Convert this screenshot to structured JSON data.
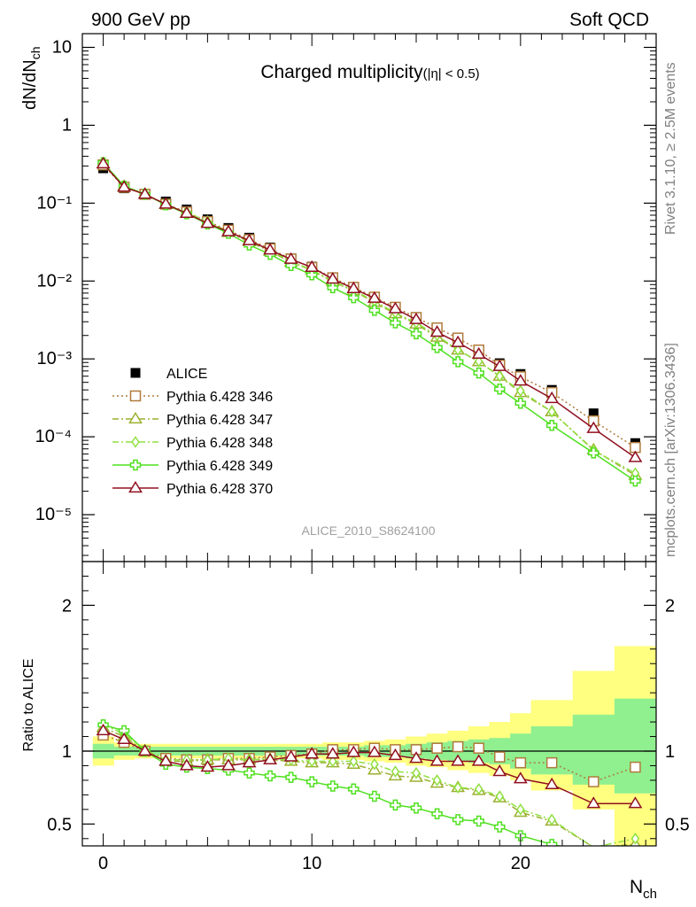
{
  "header": {
    "left": "900 GeV pp",
    "right": "Soft QCD"
  },
  "side_notes": {
    "top": "Rivet 3.1.10, ≥ 2.5M events",
    "bottom": "mcplots.cern.ch [arXiv:1306.3436]"
  },
  "analysis_id": "ALICE_2010_S8624100",
  "chart_data": [
    {
      "type": "line",
      "panel": "main",
      "title": "Charged multiplicity",
      "title_suffix": "(|η| < 0.5)",
      "ylabel": "dN/dN_ch",
      "xlabel": "",
      "yscale": "log",
      "xlim": [
        -1,
        26.5
      ],
      "ylim": [
        2.5e-06,
        15
      ],
      "yticks": [
        {
          "value": 10,
          "label": "10"
        },
        {
          "value": 1,
          "label": "1"
        },
        {
          "value": 0.1,
          "label": "10⁻¹"
        },
        {
          "value": 0.01,
          "label": "10⁻²"
        },
        {
          "value": 0.001,
          "label": "10⁻³"
        },
        {
          "value": 0.0001,
          "label": "10⁻⁴"
        },
        {
          "value": 1e-05,
          "label": "10⁻⁵"
        }
      ],
      "legend_position": "lower-left",
      "grid": false,
      "series": [
        {
          "name": "ALICE",
          "marker": "square-filled",
          "color": "#000000",
          "line": "none",
          "x": [
            0,
            1,
            2,
            3,
            4,
            5,
            6,
            7,
            8,
            9,
            10,
            11,
            12,
            13,
            14,
            15,
            16,
            17,
            18,
            19,
            20,
            21.5,
            23.5,
            25.5
          ],
          "y": [
            0.28,
            0.155,
            0.13,
            0.105,
            0.083,
            0.062,
            0.048,
            0.036,
            0.027,
            0.0195,
            0.0153,
            0.0108,
            0.0082,
            0.0061,
            0.0046,
            0.0034,
            0.0024,
            0.00175,
            0.00125,
            0.00088,
            0.00064,
            0.0004,
            0.0002,
            8.3e-05
          ]
        },
        {
          "name": "Pythia 6.428 346",
          "marker": "square-open",
          "color": "#b07a3a",
          "line": "dotted",
          "x": [
            0,
            1,
            2,
            3,
            4,
            5,
            6,
            7,
            8,
            9,
            10,
            11,
            12,
            13,
            14,
            15,
            16,
            17,
            18,
            19,
            20,
            21.5,
            23.5,
            25.5
          ],
          "y": [
            0.31,
            0.16,
            0.13,
            0.097,
            0.077,
            0.058,
            0.045,
            0.034,
            0.026,
            0.0192,
            0.0149,
            0.011,
            0.0083,
            0.0062,
            0.0046,
            0.0034,
            0.0025,
            0.00185,
            0.0013,
            0.00083,
            0.00059,
            0.00037,
            0.00016,
            7.3e-05
          ]
        },
        {
          "name": "Pythia 6.428 347",
          "marker": "triangle-open",
          "color": "#9cb030",
          "line": "dashdot",
          "x": [
            0,
            1,
            2,
            3,
            4,
            5,
            6,
            7,
            8,
            9,
            10,
            11,
            12,
            13,
            14,
            15,
            16,
            17,
            18,
            19,
            20,
            21.5,
            23.5,
            25.5
          ],
          "y": [
            0.32,
            0.165,
            0.13,
            0.096,
            0.075,
            0.057,
            0.042,
            0.032,
            0.024,
            0.0175,
            0.0138,
            0.0098,
            0.0075,
            0.0053,
            0.0038,
            0.0028,
            0.0019,
            0.0013,
            0.00092,
            0.0006,
            0.00037,
            0.00021,
            6.8e-05,
            3.2e-05
          ]
        },
        {
          "name": "Pythia 6.428 348",
          "marker": "diamond-open",
          "color": "#90e040",
          "line": "dashdot",
          "x": [
            0,
            1,
            2,
            3,
            4,
            5,
            6,
            7,
            8,
            9,
            10,
            11,
            12,
            13,
            14,
            15,
            16,
            17,
            18,
            19,
            20,
            21.5,
            23.5,
            25.5
          ],
          "y": [
            0.33,
            0.167,
            0.131,
            0.097,
            0.076,
            0.058,
            0.043,
            0.033,
            0.025,
            0.0178,
            0.0139,
            0.01,
            0.0076,
            0.0055,
            0.0039,
            0.0029,
            0.002,
            0.0013,
            0.00093,
            0.0006,
            0.00039,
            0.00021,
            6.7e-05,
            3.4e-05
          ]
        },
        {
          "name": "Pythia 6.428 349",
          "marker": "cross-open",
          "color": "#50e020",
          "line": "solid",
          "x": [
            0,
            1,
            2,
            3,
            4,
            5,
            6,
            7,
            8,
            9,
            10,
            11,
            12,
            13,
            14,
            15,
            16,
            17,
            18,
            19,
            20,
            21.5,
            23.5,
            25.5
          ],
          "y": [
            0.33,
            0.165,
            0.13,
            0.095,
            0.073,
            0.054,
            0.041,
            0.029,
            0.022,
            0.0158,
            0.012,
            0.0082,
            0.0061,
            0.0042,
            0.0029,
            0.0021,
            0.0014,
            0.00092,
            0.00066,
            0.00041,
            0.00027,
            0.00014,
            6.2e-05,
            2.7e-05
          ]
        },
        {
          "name": "Pythia 6.428 370",
          "marker": "triangle-open",
          "color": "#901020",
          "line": "solid",
          "x": [
            0,
            1,
            2,
            3,
            4,
            5,
            6,
            7,
            8,
            9,
            10,
            11,
            12,
            13,
            14,
            15,
            16,
            17,
            18,
            19,
            20,
            21.5,
            23.5,
            25.5
          ],
          "y": [
            0.32,
            0.16,
            0.13,
            0.097,
            0.074,
            0.055,
            0.043,
            0.033,
            0.025,
            0.019,
            0.015,
            0.0106,
            0.008,
            0.006,
            0.0044,
            0.0032,
            0.0022,
            0.00162,
            0.00115,
            0.0008,
            0.00052,
            0.00031,
            0.000128,
            5.4e-05
          ]
        }
      ]
    },
    {
      "type": "line",
      "panel": "ratio",
      "ylabel": "Ratio to ALICE",
      "xlabel": "N_ch",
      "xlim": [
        -1,
        26.5
      ],
      "ylim": [
        0.35,
        2.3
      ],
      "yticks": [
        0.5,
        1,
        2
      ],
      "xticks": [
        0,
        10,
        20
      ],
      "reference_line": 1,
      "bands": {
        "edges": [
          -0.5,
          0.5,
          1.5,
          2.5,
          3.5,
          4.5,
          5.5,
          6.5,
          7.5,
          8.5,
          9.5,
          10.5,
          11.5,
          12.5,
          13.5,
          14.5,
          15.5,
          16.5,
          17.5,
          18.5,
          19.5,
          20.5,
          22.5,
          24.5,
          26.5
        ],
        "outer": {
          "color": "#ffff80",
          "lo": [
            0.9,
            0.94,
            0.95,
            0.95,
            0.95,
            0.95,
            0.95,
            0.95,
            0.95,
            0.95,
            0.95,
            0.94,
            0.94,
            0.93,
            0.92,
            0.9,
            0.89,
            0.87,
            0.85,
            0.83,
            0.8,
            0.73,
            0.6,
            0.33
          ],
          "hi": [
            1.1,
            1.06,
            1.05,
            1.05,
            1.05,
            1.05,
            1.05,
            1.05,
            1.05,
            1.05,
            1.05,
            1.06,
            1.06,
            1.07,
            1.08,
            1.1,
            1.12,
            1.14,
            1.17,
            1.2,
            1.26,
            1.35,
            1.55,
            1.72
          ]
        },
        "inner": {
          "color": "#90f090",
          "lo": [
            0.95,
            0.97,
            0.97,
            0.97,
            0.97,
            0.97,
            0.97,
            0.97,
            0.97,
            0.97,
            0.97,
            0.97,
            0.97,
            0.96,
            0.96,
            0.95,
            0.94,
            0.93,
            0.92,
            0.91,
            0.88,
            0.84,
            0.77,
            0.71
          ],
          "hi": [
            1.05,
            1.03,
            1.03,
            1.03,
            1.03,
            1.03,
            1.03,
            1.03,
            1.03,
            1.03,
            1.03,
            1.03,
            1.03,
            1.04,
            1.04,
            1.05,
            1.06,
            1.07,
            1.08,
            1.09,
            1.12,
            1.17,
            1.25,
            1.36
          ]
        }
      },
      "series": [
        {
          "name": "Pythia 6.428 346",
          "marker": "square-open",
          "color": "#b07a3a",
          "line": "dotted",
          "x": [
            0,
            1,
            2,
            3,
            4,
            5,
            6,
            7,
            8,
            9,
            10,
            11,
            12,
            13,
            14,
            15,
            16,
            17,
            18,
            19,
            20,
            21.5,
            23.5,
            25.5
          ],
          "y": [
            1.11,
            1.06,
            1.0,
            0.95,
            0.94,
            0.94,
            0.95,
            0.95,
            0.96,
            0.97,
            0.98,
            1.01,
            1.01,
            1.02,
            1.01,
            1.01,
            1.02,
            1.03,
            1.02,
            0.96,
            0.92,
            0.92,
            0.79,
            0.89
          ]
        },
        {
          "name": "Pythia 6.428 347",
          "marker": "triangle-open",
          "color": "#9cb030",
          "line": "dashdot",
          "x": [
            0,
            1,
            2,
            3,
            4,
            5,
            6,
            7,
            8,
            9,
            10,
            11,
            12,
            13,
            14,
            15,
            16,
            17,
            18,
            19,
            20,
            21.5,
            23.5,
            25.5
          ],
          "y": [
            1.16,
            1.1,
            1.0,
            0.93,
            0.93,
            0.94,
            0.94,
            0.94,
            0.94,
            0.93,
            0.92,
            0.92,
            0.91,
            0.87,
            0.83,
            0.82,
            0.78,
            0.75,
            0.73,
            0.68,
            0.58,
            0.52,
            0.34,
            0.36
          ]
        },
        {
          "name": "Pythia 6.428 348",
          "marker": "diamond-open",
          "color": "#90e040",
          "line": "dashdot",
          "x": [
            0,
            1,
            2,
            3,
            4,
            5,
            6,
            7,
            8,
            9,
            10,
            11,
            12,
            13,
            14,
            15,
            16,
            17,
            18,
            19,
            20,
            21.5,
            23.5,
            25.5
          ],
          "y": [
            1.18,
            1.12,
            1.01,
            0.94,
            0.94,
            0.94,
            0.95,
            0.94,
            0.95,
            0.94,
            0.93,
            0.93,
            0.93,
            0.91,
            0.86,
            0.85,
            0.8,
            0.75,
            0.74,
            0.69,
            0.6,
            0.53,
            0.34,
            0.4
          ]
        },
        {
          "name": "Pythia 6.428 349",
          "marker": "cross-open",
          "color": "#50e020",
          "line": "solid",
          "x": [
            0,
            1,
            2,
            3,
            4,
            5,
            6,
            7,
            8,
            9,
            10,
            11,
            12,
            13,
            14,
            15,
            16,
            17,
            18,
            19,
            20,
            21.5,
            23.5,
            25.5
          ],
          "y": [
            1.18,
            1.14,
            1.0,
            0.91,
            0.89,
            0.88,
            0.87,
            0.85,
            0.83,
            0.82,
            0.79,
            0.76,
            0.74,
            0.69,
            0.63,
            0.61,
            0.57,
            0.53,
            0.52,
            0.48,
            0.42,
            0.36,
            0.3,
            0.3
          ]
        },
        {
          "name": "Pythia 6.428 370",
          "marker": "triangle-open",
          "color": "#901020",
          "line": "solid",
          "x": [
            0,
            1,
            2,
            3,
            4,
            5,
            6,
            7,
            8,
            9,
            10,
            11,
            12,
            13,
            14,
            15,
            16,
            17,
            18,
            19,
            20,
            21.5,
            23.5,
            25.5
          ],
          "y": [
            1.14,
            1.08,
            1.0,
            0.93,
            0.9,
            0.89,
            0.9,
            0.92,
            0.94,
            0.96,
            0.98,
            0.98,
            0.99,
            0.99,
            0.97,
            0.95,
            0.93,
            0.93,
            0.93,
            0.86,
            0.81,
            0.77,
            0.64,
            0.64
          ]
        }
      ]
    }
  ]
}
